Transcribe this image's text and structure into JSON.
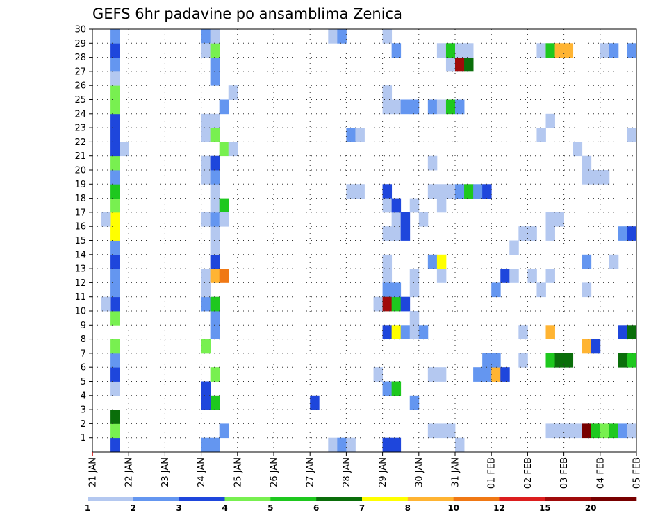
{
  "chart_data": {
    "type": "heatmap",
    "title": "GEFS 6hr padavine po ansamblima Zenica",
    "x_tick_labels": [
      "21 JAN",
      "22 JAN",
      "23 JAN",
      "24 JAN",
      "25 JAN",
      "26 JAN",
      "27 JAN",
      "28 JAN",
      "29 JAN",
      "30 JAN",
      "31 JAN",
      "01 FEB",
      "02 FEB",
      "03 FEB",
      "04 FEB",
      "05 FEB"
    ],
    "y_tick_labels": [
      "1",
      "2",
      "3",
      "4",
      "5",
      "6",
      "7",
      "8",
      "9",
      "10",
      "11",
      "12",
      "13",
      "14",
      "15",
      "16",
      "17",
      "18",
      "19",
      "20",
      "21",
      "22",
      "23",
      "24",
      "25",
      "26",
      "27",
      "28",
      "29",
      "30"
    ],
    "xlim_steps": [
      0,
      60
    ],
    "ylim": [
      0,
      30
    ],
    "grid": true,
    "colorbar": {
      "colors": [
        "#b4c8f0",
        "#6496f0",
        "#1e46dc",
        "#78f050",
        "#1ec81e",
        "#0a6e0a",
        "#ffff00",
        "#ffb432",
        "#f07814",
        "#dc1e1e",
        "#a00a0a",
        "#780000"
      ],
      "labels": [
        "1",
        "2",
        "3",
        "4",
        "5",
        "6",
        "7",
        "8",
        "10",
        "12",
        "15",
        "20"
      ]
    },
    "cells_note": "each cell: [time_step_index (6h steps from 21 JAN 00Z), member_row, precip_class]",
    "cells": [
      [
        2,
        0,
        3
      ],
      [
        2,
        1,
        4
      ],
      [
        2,
        2,
        6
      ],
      [
        2,
        4,
        1
      ],
      [
        2,
        5,
        3
      ],
      [
        2,
        6,
        2
      ],
      [
        2,
        7,
        4
      ],
      [
        2,
        9,
        4
      ],
      [
        2,
        10,
        3
      ],
      [
        2,
        11,
        2
      ],
      [
        2,
        12,
        2
      ],
      [
        2,
        13,
        3
      ],
      [
        2,
        14,
        2
      ],
      [
        2,
        15,
        7
      ],
      [
        2,
        16,
        7
      ],
      [
        2,
        17,
        4
      ],
      [
        2,
        18,
        5
      ],
      [
        2,
        19,
        2
      ],
      [
        2,
        20,
        4
      ],
      [
        2,
        21,
        3
      ],
      [
        2,
        22,
        3
      ],
      [
        2,
        23,
        3
      ],
      [
        2,
        24,
        4
      ],
      [
        2,
        25,
        4
      ],
      [
        2,
        26,
        1
      ],
      [
        2,
        27,
        2
      ],
      [
        2,
        28,
        3
      ],
      [
        2,
        29,
        2
      ],
      [
        1,
        16,
        1
      ],
      [
        1,
        10,
        1
      ],
      [
        3,
        21,
        1
      ],
      [
        12,
        29,
        2
      ],
      [
        12,
        28,
        1
      ],
      [
        12,
        10,
        2
      ],
      [
        12,
        16,
        1
      ],
      [
        12,
        12,
        1
      ],
      [
        12,
        19,
        1
      ],
      [
        12,
        20,
        1
      ],
      [
        12,
        22,
        1
      ],
      [
        12,
        4,
        3
      ],
      [
        12,
        7,
        4
      ],
      [
        12,
        0,
        2
      ],
      [
        13,
        0,
        2
      ],
      [
        13,
        5,
        4
      ],
      [
        13,
        9,
        2
      ],
      [
        13,
        10,
        5
      ],
      [
        13,
        13,
        3
      ],
      [
        13,
        14,
        1
      ],
      [
        13,
        15,
        1
      ],
      [
        13,
        16,
        2
      ],
      [
        13,
        17,
        1
      ],
      [
        13,
        18,
        1
      ],
      [
        13,
        19,
        2
      ],
      [
        13,
        20,
        3
      ],
      [
        13,
        22,
        4
      ],
      [
        13,
        23,
        1
      ],
      [
        13,
        26,
        2
      ],
      [
        13,
        27,
        2
      ],
      [
        13,
        28,
        4
      ],
      [
        13,
        29,
        1
      ],
      [
        13,
        3,
        5
      ],
      [
        13,
        12,
        8
      ],
      [
        13,
        8,
        2
      ],
      [
        14,
        1,
        2
      ],
      [
        14,
        21,
        4
      ],
      [
        14,
        17,
        5
      ],
      [
        14,
        12,
        9
      ],
      [
        14,
        24,
        2
      ],
      [
        14,
        16,
        1
      ],
      [
        15,
        21,
        1
      ],
      [
        15,
        25,
        1
      ],
      [
        12,
        3,
        3
      ],
      [
        12,
        23,
        1
      ],
      [
        12,
        11,
        1
      ],
      [
        24,
        3,
        3
      ],
      [
        26,
        0,
        1
      ],
      [
        26,
        29,
        1
      ],
      [
        27,
        0,
        2
      ],
      [
        27,
        29,
        2
      ],
      [
        28,
        0,
        1
      ],
      [
        28,
        18,
        1
      ],
      [
        28,
        22,
        2
      ],
      [
        29,
        22,
        1
      ],
      [
        29,
        18,
        1
      ],
      [
        31,
        5,
        1
      ],
      [
        31,
        10,
        1
      ],
      [
        32,
        0,
        3
      ],
      [
        32,
        25,
        1
      ],
      [
        32,
        24,
        1
      ],
      [
        32,
        18,
        3
      ],
      [
        32,
        17,
        1
      ],
      [
        32,
        15,
        1
      ],
      [
        32,
        13,
        1
      ],
      [
        32,
        12,
        1
      ],
      [
        32,
        11,
        2
      ],
      [
        32,
        10,
        11
      ],
      [
        32,
        8,
        3
      ],
      [
        32,
        4,
        2
      ],
      [
        32,
        29,
        1
      ],
      [
        33,
        0,
        3
      ],
      [
        33,
        24,
        1
      ],
      [
        33,
        4,
        5
      ],
      [
        33,
        10,
        5
      ],
      [
        33,
        11,
        2
      ],
      [
        33,
        16,
        1
      ],
      [
        33,
        17,
        3
      ],
      [
        33,
        15,
        1
      ],
      [
        33,
        8,
        7
      ],
      [
        33,
        28,
        2
      ],
      [
        34,
        24,
        2
      ],
      [
        34,
        16,
        3
      ],
      [
        34,
        15,
        3
      ],
      [
        34,
        10,
        3
      ],
      [
        34,
        8,
        2
      ],
      [
        35,
        3,
        2
      ],
      [
        35,
        24,
        2
      ],
      [
        35,
        17,
        1
      ],
      [
        35,
        9,
        1
      ],
      [
        35,
        12,
        1
      ],
      [
        35,
        11,
        1
      ],
      [
        35,
        8,
        1
      ],
      [
        36,
        8,
        2
      ],
      [
        36,
        16,
        1
      ],
      [
        37,
        1,
        1
      ],
      [
        37,
        5,
        1
      ],
      [
        37,
        18,
        1
      ],
      [
        37,
        20,
        1
      ],
      [
        37,
        24,
        2
      ],
      [
        37,
        13,
        2
      ],
      [
        38,
        1,
        1
      ],
      [
        38,
        5,
        1
      ],
      [
        38,
        24,
        1
      ],
      [
        38,
        18,
        1
      ],
      [
        38,
        17,
        1
      ],
      [
        38,
        13,
        7
      ],
      [
        38,
        12,
        1
      ],
      [
        38,
        28,
        1
      ],
      [
        39,
        1,
        1
      ],
      [
        39,
        24,
        5
      ],
      [
        39,
        18,
        1
      ],
      [
        39,
        27,
        1
      ],
      [
        39,
        28,
        5
      ],
      [
        40,
        27,
        11
      ],
      [
        40,
        28,
        1
      ],
      [
        40,
        24,
        2
      ],
      [
        40,
        18,
        2
      ],
      [
        40,
        0,
        1
      ],
      [
        41,
        27,
        6
      ],
      [
        41,
        28,
        1
      ],
      [
        41,
        18,
        5
      ],
      [
        42,
        5,
        2
      ],
      [
        42,
        18,
        2
      ],
      [
        43,
        5,
        2
      ],
      [
        43,
        18,
        3
      ],
      [
        43,
        6,
        2
      ],
      [
        44,
        5,
        8
      ],
      [
        44,
        11,
        2
      ],
      [
        44,
        6,
        2
      ],
      [
        45,
        5,
        3
      ],
      [
        45,
        12,
        3
      ],
      [
        46,
        12,
        1
      ],
      [
        46,
        14,
        1
      ],
      [
        47,
        6,
        1
      ],
      [
        47,
        8,
        1
      ],
      [
        47,
        15,
        1
      ],
      [
        48,
        15,
        1
      ],
      [
        48,
        12,
        1
      ],
      [
        49,
        22,
        1
      ],
      [
        49,
        28,
        1
      ],
      [
        49,
        11,
        1
      ],
      [
        50,
        1,
        1
      ],
      [
        50,
        6,
        5
      ],
      [
        50,
        8,
        8
      ],
      [
        50,
        16,
        1
      ],
      [
        50,
        15,
        1
      ],
      [
        50,
        12,
        1
      ],
      [
        50,
        23,
        1
      ],
      [
        50,
        28,
        5
      ],
      [
        51,
        1,
        1
      ],
      [
        51,
        6,
        6
      ],
      [
        51,
        16,
        1
      ],
      [
        51,
        28,
        8
      ],
      [
        52,
        1,
        1
      ],
      [
        52,
        6,
        6
      ],
      [
        52,
        28,
        8
      ],
      [
        53,
        1,
        1
      ],
      [
        53,
        21,
        1
      ],
      [
        54,
        1,
        12
      ],
      [
        54,
        7,
        8
      ],
      [
        54,
        13,
        2
      ],
      [
        54,
        11,
        1
      ],
      [
        54,
        19,
        1
      ],
      [
        54,
        20,
        1
      ],
      [
        55,
        1,
        5
      ],
      [
        55,
        7,
        3
      ],
      [
        55,
        19,
        1
      ],
      [
        56,
        1,
        4
      ],
      [
        56,
        19,
        1
      ],
      [
        56,
        28,
        1
      ],
      [
        57,
        1,
        5
      ],
      [
        57,
        13,
        1
      ],
      [
        57,
        28,
        2
      ],
      [
        58,
        1,
        2
      ],
      [
        58,
        8,
        3
      ],
      [
        58,
        15,
        2
      ],
      [
        58,
        6,
        6
      ],
      [
        59,
        1,
        1
      ],
      [
        59,
        8,
        6
      ],
      [
        59,
        15,
        3
      ],
      [
        59,
        6,
        5
      ],
      [
        59,
        22,
        1
      ],
      [
        59,
        28,
        2
      ],
      [
        60,
        1,
        3
      ],
      [
        60,
        28,
        2
      ],
      [
        60,
        5,
        1
      ],
      [
        60,
        6,
        5
      ],
      [
        60,
        26,
        2
      ]
    ]
  }
}
